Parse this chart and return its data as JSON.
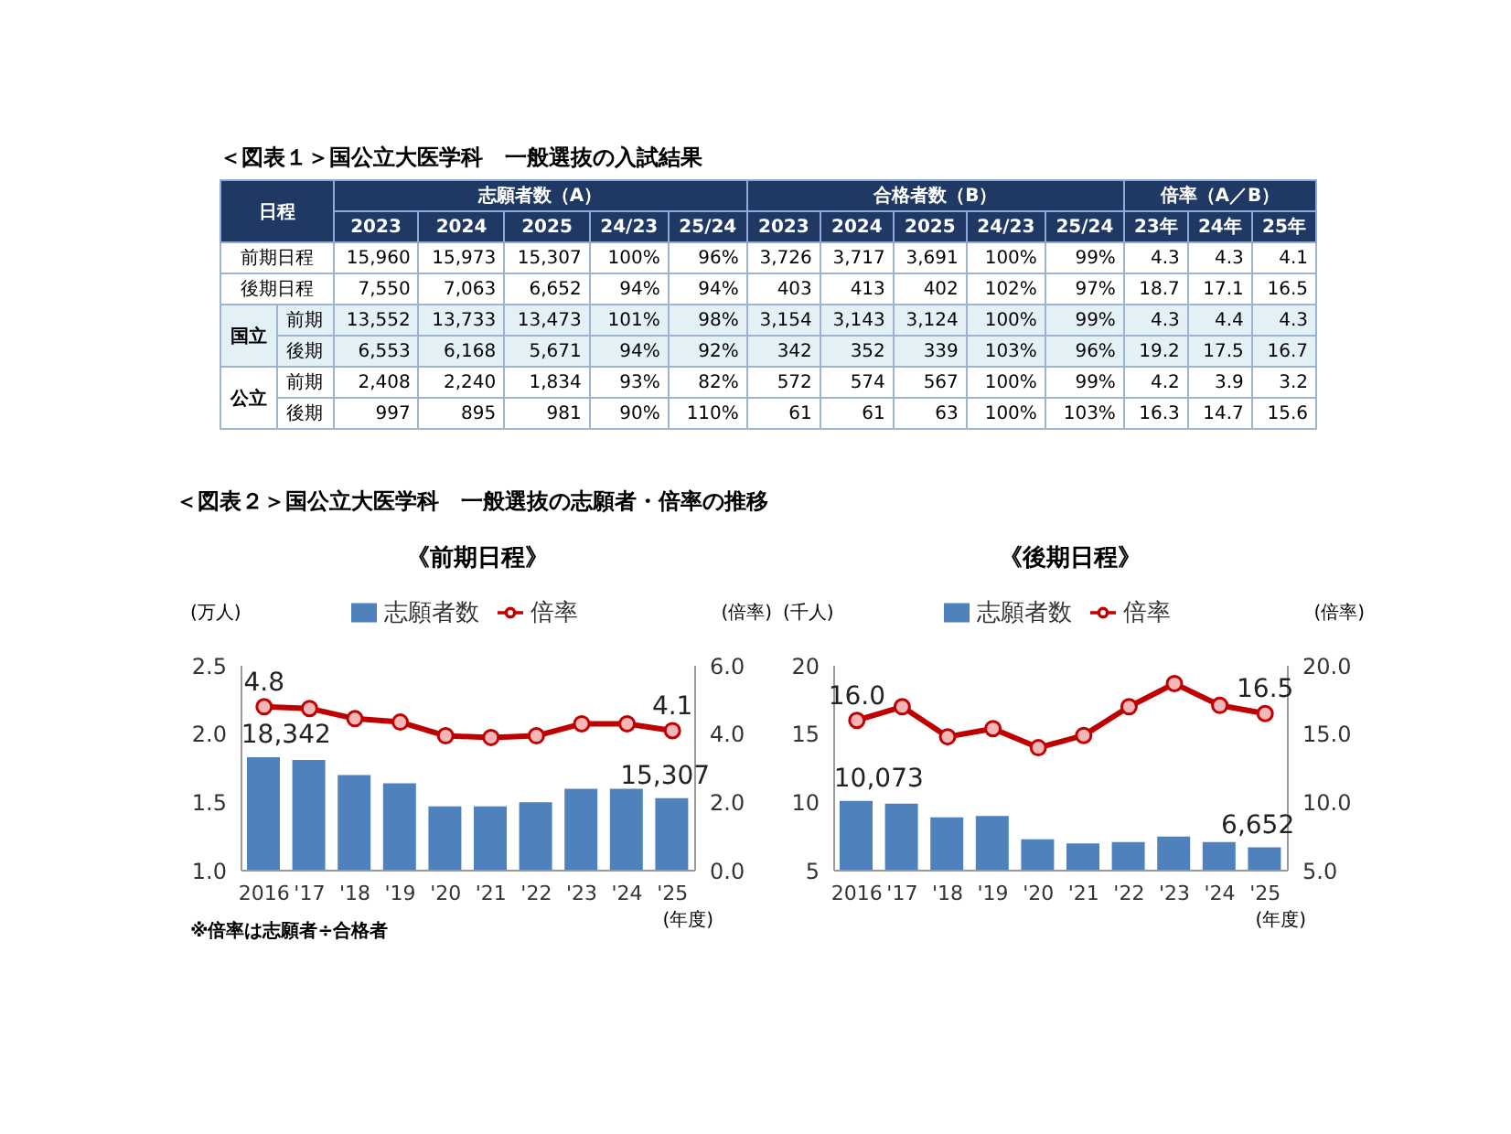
{
  "chart_data": [
    {
      "type": "other",
      "title": "＜図表１＞国公立大医学科　一般選抜の入試結果",
      "categories": [
        "2023",
        "2024",
        "2025",
        "24/23",
        "25/24",
        "2023",
        "2024",
        "2025",
        "24/23",
        "25/24",
        "23年",
        "24年",
        "25年"
      ],
      "y_categories": [
        "前期日程",
        "後期日程",
        "前期",
        "後期",
        "前期",
        "後期"
      ],
      "cell_labels": [
        [
          "15,960",
          "15,973",
          "15,307",
          "100%",
          "96%",
          "3,726",
          "3,717",
          "3,691",
          "100%",
          "99%",
          "4.3",
          "4.3",
          "4.1"
        ],
        [
          "7,550",
          "7,063",
          "6,652",
          "94%",
          "94%",
          "403",
          "413",
          "402",
          "102%",
          "97%",
          "18.7",
          "17.1",
          "16.5"
        ],
        [
          "13,552",
          "13,733",
          "13,473",
          "101%",
          "98%",
          "3,154",
          "3,143",
          "3,124",
          "100%",
          "99%",
          "4.3",
          "4.4",
          "4.3"
        ],
        [
          "6,553",
          "6,168",
          "5,671",
          "94%",
          "92%",
          "342",
          "352",
          "339",
          "103%",
          "96%",
          "19.2",
          "17.5",
          "16.7"
        ],
        [
          "2,408",
          "2,240",
          "1,834",
          "93%",
          "82%",
          "572",
          "574",
          "567",
          "100%",
          "99%",
          "4.2",
          "3.9",
          "3.2"
        ],
        [
          "997",
          "895",
          "981",
          "90%",
          "110%",
          "61",
          "61",
          "63",
          "100%",
          "103%",
          "16.3",
          "14.7",
          "15.6"
        ]
      ],
      "annotations": [
        "日程",
        "志願者数（A）",
        "合格者数（B）",
        "倍率（A／B）",
        "国立",
        "公立"
      ]
    },
    {
      "type": "bar",
      "subtitle": "＜図表２＞国公立大医学科　一般選抜の志願者・倍率の推移",
      "title": "《前期日程》",
      "categories": [
        "2016",
        "'17",
        "'18",
        "'19",
        "'20",
        "'21",
        "'22",
        "'23",
        "'24",
        "'25"
      ],
      "xlabel": "(年度)",
      "ylabel": "(万人)",
      "y2label": "(倍率)",
      "legend": "top",
      "marker": "circle",
      "ylim": [
        1,
        2.5
      ],
      "yticks": [
        {
          "value": 1,
          "label": "1.0"
        },
        1.5,
        {
          "value": 2,
          "label": "2.0"
        },
        2.5
      ],
      "y2lim": [
        0,
        6
      ],
      "y2ticks": [
        {
          "value": 0,
          "label": "0.0"
        },
        {
          "value": 2,
          "label": "2.0"
        },
        {
          "value": 4,
          "label": "4.0"
        },
        {
          "value": 6,
          "label": "6.0"
        }
      ],
      "series": [
        {
          "name": "志願者数",
          "type": "bar",
          "color": "#4f81bd",
          "values": [
            1.83,
            1.81,
            1.7,
            1.64,
            1.47,
            1.47,
            1.5,
            1.6,
            1.6,
            1.53
          ]
        },
        {
          "name": "倍率",
          "type": "line",
          "axis": "y2",
          "color": "#c00000",
          "values": [
            4.8,
            4.75,
            4.45,
            4.35,
            3.95,
            3.9,
            3.95,
            4.3,
            4.3,
            4.1
          ],
          "value_labels": [
            "4.8",
            null,
            null,
            null,
            null,
            null,
            null,
            null,
            null,
            "4.1"
          ]
        }
      ],
      "annotations": [
        "※倍率は志願者÷合格者",
        {
          "text": "18,342",
          "x": "2016",
          "y": 1.83
        },
        {
          "text": "15,307",
          "x": "'25",
          "y": 1.53
        }
      ]
    },
    {
      "type": "bar",
      "title": "《後期日程》",
      "categories": [
        "2016",
        "'17",
        "'18",
        "'19",
        "'20",
        "'21",
        "'22",
        "'23",
        "'24",
        "'25"
      ],
      "xlabel": "(年度)",
      "ylabel": "(千人)",
      "y2label": "(倍率)",
      "legend": "top",
      "marker": "circle",
      "ylim": [
        5,
        20
      ],
      "yticks": [
        5,
        10,
        15,
        20
      ],
      "y2lim": [
        5,
        20
      ],
      "y2ticks": [
        {
          "value": 5,
          "label": "5.0"
        },
        {
          "value": 10,
          "label": "10.0"
        },
        {
          "value": 15,
          "label": "15.0"
        },
        {
          "value": 20,
          "label": "20.0"
        }
      ],
      "series": [
        {
          "name": "志願者数",
          "type": "bar",
          "color": "#4f81bd",
          "values": [
            10.1,
            9.9,
            8.9,
            9.0,
            7.3,
            7.0,
            7.1,
            7.5,
            7.1,
            6.7
          ]
        },
        {
          "name": "倍率",
          "type": "line",
          "axis": "y2",
          "color": "#c00000",
          "values": [
            16.0,
            17.0,
            14.8,
            15.4,
            14.0,
            14.9,
            17.0,
            18.7,
            17.1,
            16.5
          ],
          "value_labels": [
            "16.0",
            null,
            null,
            null,
            null,
            null,
            null,
            null,
            null,
            "16.5"
          ]
        }
      ],
      "annotations": [
        {
          "text": "10,073",
          "x": "2016",
          "y": 10.1
        },
        {
          "text": "6,652",
          "x": "'25",
          "y": 6.7
        }
      ]
    }
  ]
}
